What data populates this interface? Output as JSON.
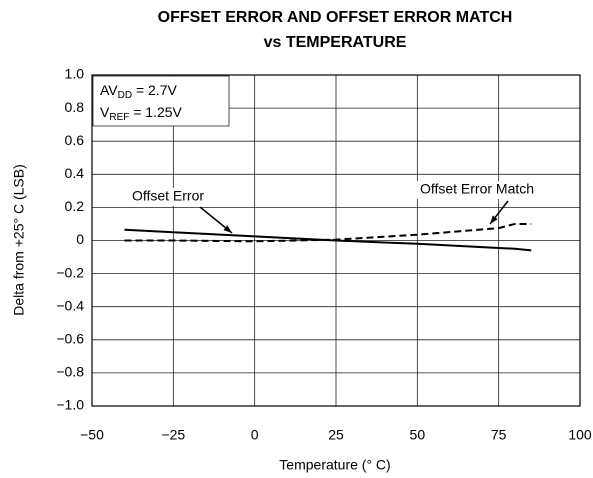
{
  "chart_data": {
    "type": "line",
    "title": [
      "OFFSET ERROR AND OFFSET ERROR MATCH",
      "vs TEMPERATURE"
    ],
    "x_label": "Temperature (° C)",
    "y_label": "Delta from +25° C (LSB)",
    "annotations": [
      [
        "AV",
        "DD",
        " = 2.7V"
      ],
      [
        "V",
        "REF",
        " = 1.25V"
      ]
    ],
    "x": [
      -40,
      -25,
      0,
      25,
      50,
      75,
      80,
      85
    ],
    "series": [
      {
        "name": "Offset Error",
        "color": "#000000",
        "dash": false,
        "values": [
          0.065,
          0.05,
          0.025,
          0,
          -0.02,
          -0.045,
          -0.05,
          -0.06
        ]
      },
      {
        "name": "Offset Error Match",
        "color": "#000000",
        "dash": true,
        "values": [
          0,
          0,
          -0.005,
          0.005,
          0.035,
          0.075,
          0.1,
          0.1
        ]
      }
    ],
    "xlim": [
      -50,
      100
    ],
    "xticks": [
      {
        "value": -50,
        "label": "−50"
      },
      {
        "value": -25,
        "label": "−25"
      },
      0,
      25,
      50,
      75,
      100
    ],
    "ylim": [
      -1,
      1
    ],
    "yticks": [
      {
        "value": -1,
        "label": "−1.0"
      },
      {
        "value": -0.8,
        "label": "−0.8"
      },
      {
        "value": -0.6,
        "label": "−0.6"
      },
      {
        "value": -0.4,
        "label": "−0.4"
      },
      {
        "value": -0.2,
        "label": "−0.2"
      },
      0,
      0.2,
      0.4,
      0.6,
      0.8,
      {
        "value": 1,
        "label": "1.0"
      }
    ],
    "grid": true
  }
}
